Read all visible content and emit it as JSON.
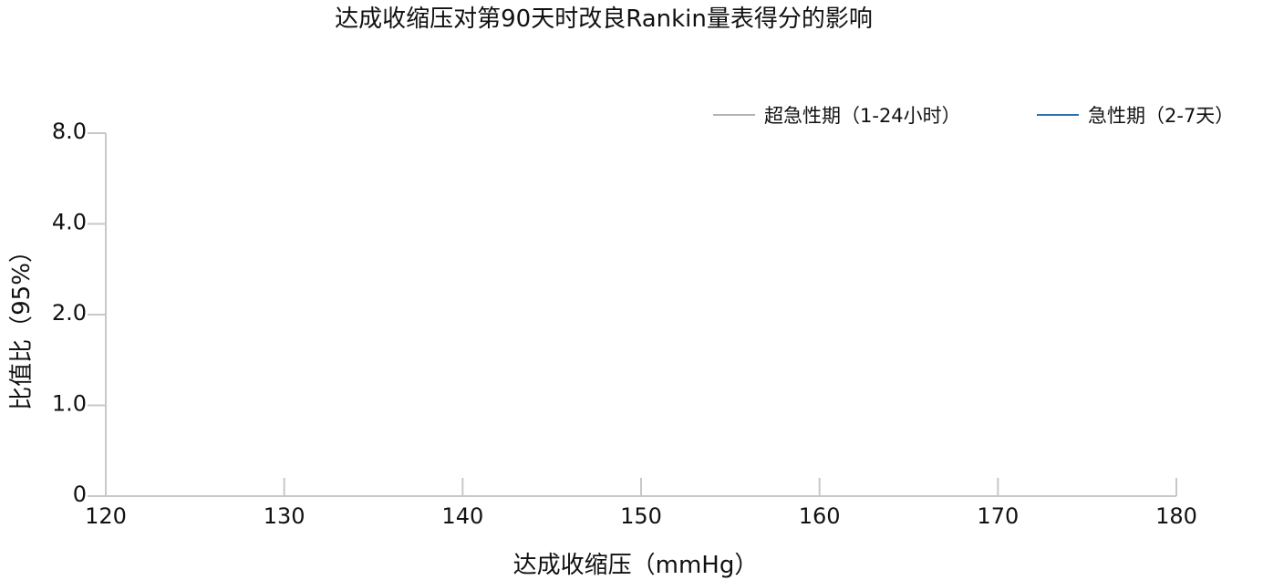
{
  "chart_data": {
    "type": "line",
    "title": "达成收缩压对第90天时改良Rankin量表得分的影响",
    "xlabel": "达成收缩压（mmHg）",
    "ylabel": "比值比（95%）",
    "xlim": [
      120,
      180
    ],
    "x_ticks": [
      "120",
      "130",
      "140",
      "150",
      "160",
      "170",
      "180"
    ],
    "y_ticks": [
      "0",
      "1.0",
      "2.0",
      "4.0",
      "8.0"
    ],
    "y_scale": "categorical-levels (0, 1.0, 2.0, 4.0, 8.0 evenly spaced)",
    "grid": false,
    "legend_position": "top-right",
    "series": [
      {
        "name": "超急性期（1-24小时）",
        "color": "#b3b3b3",
        "points": []
      },
      {
        "name": "急性期（2-7天）",
        "color": "#2e6fb3",
        "points": []
      }
    ]
  }
}
